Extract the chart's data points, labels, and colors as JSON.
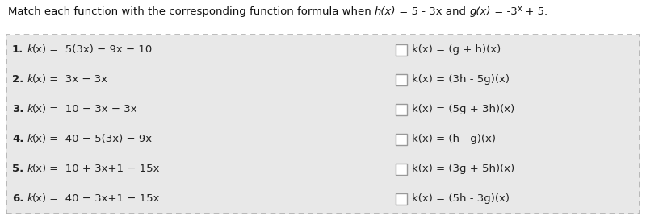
{
  "bg_color": "#e8e8e8",
  "outer_bg": "#ffffff",
  "border_color": "#b0b0b0",
  "font_size_title": 9.5,
  "font_size_items": 9.5,
  "box_color": "#ffffff",
  "box_edge_color": "#999999",
  "left_formulas": [
    " =  5(3x) − 9x − 10",
    " =  3x − 3x",
    " =  10 − 3x − 3x",
    " =  40 − 5(3x) − 9x",
    " =  10 + 3x+1 − 15x",
    " =  40 − 3x+1 − 15x"
  ],
  "right_items": [
    "k(x) = (g + h)(x)",
    "k(x) = (3h - 5g)(x)",
    "k(x) = (5g + 3h)(x)",
    "k(x) = (h - g)(x)",
    "k(x) = (3g + 5h)(x)",
    "k(x) = (5h - 3g)(x)"
  ],
  "numbers": [
    "1.",
    "2.",
    "3.",
    "4.",
    "5.",
    "6."
  ],
  "title_prefix": "Match each function with the corresponding function formula when ",
  "title_hx": "h(x)",
  "title_mid": " = 5 - 3x and ",
  "title_gx": "g(x)",
  "title_suffix_pre": " = -3",
  "title_suffix_x": "x",
  "title_suffix_post": " + 5."
}
